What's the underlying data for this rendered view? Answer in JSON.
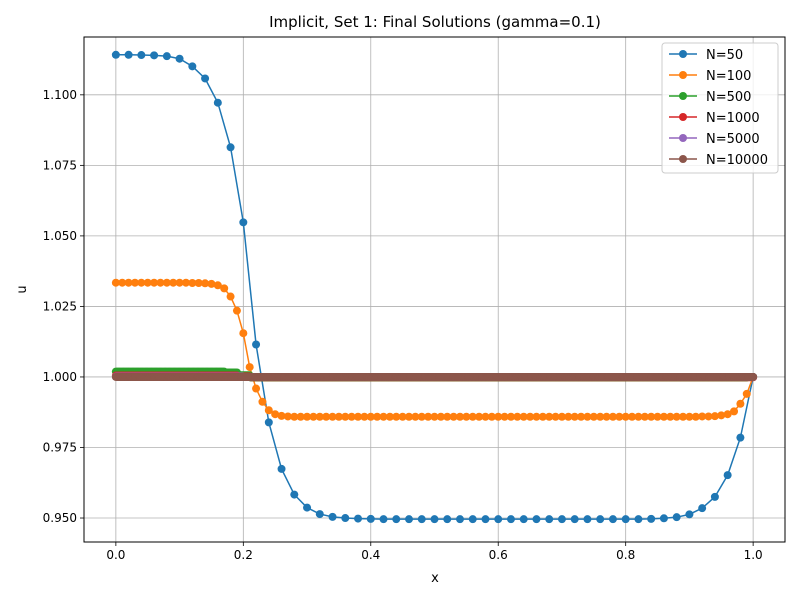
{
  "chart_data": {
    "type": "line",
    "title": "Implicit, Set 1: Final Solutions (gamma=0.1)",
    "xlabel": "x",
    "ylabel": "u",
    "xlim": [
      -0.05,
      1.05
    ],
    "ylim": [
      0.9415,
      1.1205
    ],
    "xticks": [
      0.0,
      0.2,
      0.4,
      0.6,
      0.8,
      1.0
    ],
    "xtick_labels": [
      "0.0",
      "0.2",
      "0.4",
      "0.6",
      "0.8",
      "1.0"
    ],
    "yticks": [
      0.95,
      0.975,
      1.0,
      1.025,
      1.05,
      1.075,
      1.1
    ],
    "ytick_labels": [
      "0.950",
      "0.975",
      "1.000",
      "1.025",
      "1.050",
      "1.075",
      "1.100"
    ],
    "grid": true,
    "legend_position": "top-right",
    "series": [
      {
        "name": "N=50",
        "color": "#1f77b4",
        "x": [
          0.0,
          0.02,
          0.04,
          0.06,
          0.08,
          0.1,
          0.12,
          0.14,
          0.16,
          0.18,
          0.2,
          0.22,
          0.24,
          0.26,
          0.28,
          0.3,
          0.32,
          0.34,
          0.36,
          0.38,
          0.4,
          0.42,
          0.44,
          0.46,
          0.48,
          0.5,
          0.52,
          0.54,
          0.56,
          0.58,
          0.6,
          0.62,
          0.64,
          0.66,
          0.68,
          0.7,
          0.72,
          0.74,
          0.76,
          0.78,
          0.8,
          0.82,
          0.84,
          0.86,
          0.88,
          0.9,
          0.92,
          0.94,
          0.96,
          0.98,
          1.0
        ],
        "y": [
          1.1142,
          1.1142,
          1.1141,
          1.114,
          1.1137,
          1.1128,
          1.1101,
          1.1058,
          1.0972,
          1.0814,
          1.0548,
          1.0115,
          0.9839,
          0.9674,
          0.9583,
          0.9537,
          0.9514,
          0.9504,
          0.95,
          0.9498,
          0.9497,
          0.9496,
          0.9496,
          0.9496,
          0.9496,
          0.9496,
          0.9496,
          0.9496,
          0.9496,
          0.9496,
          0.9496,
          0.9496,
          0.9496,
          0.9496,
          0.9496,
          0.9496,
          0.9496,
          0.9496,
          0.9496,
          0.9496,
          0.9496,
          0.9496,
          0.9497,
          0.9499,
          0.9503,
          0.9513,
          0.9535,
          0.9575,
          0.9652,
          0.9785,
          1.0
        ]
      },
      {
        "name": "N=100",
        "color": "#ff7f0e",
        "x": [
          0.0,
          0.01,
          0.02,
          0.03,
          0.04,
          0.05,
          0.06,
          0.07,
          0.08,
          0.09,
          0.1,
          0.11,
          0.12,
          0.13,
          0.14,
          0.15,
          0.16,
          0.17,
          0.18,
          0.19,
          0.2,
          0.21,
          0.22,
          0.23,
          0.24,
          0.25,
          0.26,
          0.27,
          0.28,
          0.29,
          0.3,
          0.31,
          0.32,
          0.33,
          0.34,
          0.35,
          0.36,
          0.37,
          0.38,
          0.39,
          0.4,
          0.41,
          0.42,
          0.43,
          0.44,
          0.45,
          0.46,
          0.47,
          0.48,
          0.49,
          0.5,
          0.51,
          0.52,
          0.53,
          0.54,
          0.55,
          0.56,
          0.57,
          0.58,
          0.59,
          0.6,
          0.61,
          0.62,
          0.63,
          0.64,
          0.65,
          0.66,
          0.67,
          0.68,
          0.69,
          0.7,
          0.71,
          0.72,
          0.73,
          0.74,
          0.75,
          0.76,
          0.77,
          0.78,
          0.79,
          0.8,
          0.81,
          0.82,
          0.83,
          0.84,
          0.85,
          0.86,
          0.87,
          0.88,
          0.89,
          0.9,
          0.91,
          0.92,
          0.93,
          0.94,
          0.95,
          0.96,
          0.97,
          0.98,
          0.99,
          1.0
        ],
        "y": [
          1.0334,
          1.0334,
          1.0334,
          1.0334,
          1.0334,
          1.0334,
          1.0334,
          1.0334,
          1.0334,
          1.0334,
          1.0334,
          1.0334,
          1.0333,
          1.0333,
          1.0332,
          1.033,
          1.0325,
          1.0314,
          1.0285,
          1.0235,
          1.0155,
          1.0035,
          0.9959,
          0.9912,
          0.9882,
          0.9868,
          0.9862,
          0.986,
          0.9859,
          0.9859,
          0.9859,
          0.9859,
          0.9859,
          0.9859,
          0.9859,
          0.9859,
          0.9859,
          0.9859,
          0.9859,
          0.9859,
          0.9859,
          0.9859,
          0.9859,
          0.9859,
          0.9859,
          0.9859,
          0.9859,
          0.9859,
          0.9859,
          0.9859,
          0.9859,
          0.9859,
          0.9859,
          0.9859,
          0.9859,
          0.9859,
          0.9859,
          0.9859,
          0.9859,
          0.9859,
          0.9859,
          0.9859,
          0.9859,
          0.9859,
          0.9859,
          0.9859,
          0.9859,
          0.9859,
          0.9859,
          0.9859,
          0.9859,
          0.9859,
          0.9859,
          0.9859,
          0.9859,
          0.9859,
          0.9859,
          0.9859,
          0.9859,
          0.9859,
          0.9859,
          0.9859,
          0.9859,
          0.9859,
          0.9859,
          0.9859,
          0.9859,
          0.9859,
          0.9859,
          0.9859,
          0.9859,
          0.9859,
          0.986,
          0.986,
          0.9861,
          0.9864,
          0.9868,
          0.9878,
          0.9905,
          0.994,
          1.0
        ]
      },
      {
        "name": "N=500",
        "color": "#2ca02c",
        "x_range": [
          0.0,
          1.0
        ],
        "count": 501,
        "y_piecewise": [
          {
            "x_max": 0.17,
            "y": 1.0019
          },
          {
            "x_max": 0.19,
            "y": 1.0016
          },
          {
            "x_max": 0.21,
            "y": 1.0006
          },
          {
            "x_max": 0.99,
            "y": 0.9998
          },
          {
            "x_max": 1.0,
            "y": 1.0
          }
        ]
      },
      {
        "name": "N=1000",
        "color": "#d62728",
        "x_range": [
          0.0,
          1.0
        ],
        "count": 1001,
        "y_piecewise": [
          {
            "x_max": 0.19,
            "y": 1.0005
          },
          {
            "x_max": 0.21,
            "y": 1.0002
          },
          {
            "x_max": 1.0,
            "y": 0.9999
          }
        ]
      },
      {
        "name": "N=5000",
        "color": "#9467bd",
        "x_range": [
          0.0,
          1.0
        ],
        "count": 5001,
        "y_piecewise": [
          {
            "x_max": 0.2,
            "y": 1.0001
          },
          {
            "x_max": 1.0,
            "y": 1.0
          }
        ]
      },
      {
        "name": "N=10000",
        "color": "#8c564b",
        "x_range": [
          0.0,
          1.0
        ],
        "count": 10001,
        "y_piecewise": [
          {
            "x_max": 0.2,
            "y": 1.0
          },
          {
            "x_max": 1.0,
            "y": 1.0
          }
        ]
      }
    ]
  }
}
